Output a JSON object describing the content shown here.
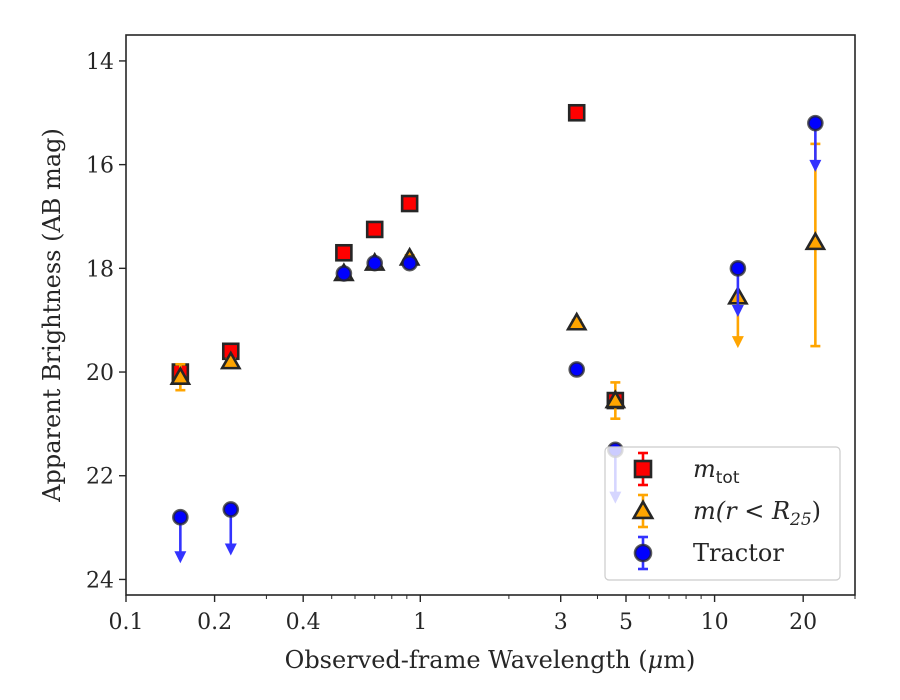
{
  "chart_data": {
    "type": "scatter",
    "xlabel": "Observed-frame Wavelength (μm)",
    "xlabel_parts": {
      "pre": "Observed-frame Wavelength (",
      "sym": "μ",
      "post": "m)"
    },
    "ylabel": "Apparent Brightness (AB mag)",
    "x_scale": "log",
    "xlim": [
      0.1,
      30
    ],
    "ylim": [
      24.3,
      13.5
    ],
    "y_inverted": true,
    "x_ticks": [
      {
        "value": 0.1,
        "label": "0.1"
      },
      {
        "value": 0.2,
        "label": "0.2"
      },
      {
        "value": 0.4,
        "label": "0.4"
      },
      {
        "value": 1,
        "label": "1"
      },
      {
        "value": 3,
        "label": "3"
      },
      {
        "value": 5,
        "label": "5"
      },
      {
        "value": 10,
        "label": "10"
      },
      {
        "value": 20,
        "label": "20"
      }
    ],
    "x_minor_ticks": [
      0.3,
      0.5,
      0.6,
      0.7,
      0.8,
      0.9,
      2,
      4,
      6,
      7,
      8,
      9,
      30
    ],
    "y_ticks": [
      {
        "value": 14,
        "label": "14"
      },
      {
        "value": 16,
        "label": "16"
      },
      {
        "value": 18,
        "label": "18"
      },
      {
        "value": 20,
        "label": "20"
      },
      {
        "value": 22,
        "label": "22"
      },
      {
        "value": 24,
        "label": "24"
      }
    ],
    "grid": false,
    "legend_position": "lower-right",
    "series": [
      {
        "key": "mtot",
        "name": "m_tot",
        "legend_label": {
          "base": "m",
          "sub": "tot"
        },
        "marker": "square",
        "color": "#ff0000",
        "edge_color": "#262626",
        "errbar_color": "#ff0000",
        "points": [
          {
            "x": 0.153,
            "y": 20.0,
            "err": 0.05
          },
          {
            "x": 0.227,
            "y": 19.6,
            "err": 0.05
          },
          {
            "x": 0.55,
            "y": 17.7,
            "err": 0.05
          },
          {
            "x": 0.7,
            "y": 17.25,
            "err": 0.05
          },
          {
            "x": 0.92,
            "y": 16.75,
            "err": 0.05
          },
          {
            "x": 3.4,
            "y": 15.0,
            "err": 0.05
          },
          {
            "x": 4.6,
            "y": 20.55,
            "err": 0.05
          }
        ]
      },
      {
        "key": "mr25",
        "name": "m(r < R_25)",
        "legend_label": {
          "pre": "m(r < R",
          "sub": "25",
          "post": ")"
        },
        "marker": "triangle",
        "color": "#ffa500",
        "edge_color": "#262626",
        "errbar_color": "#ffa500",
        "points": [
          {
            "x": 0.153,
            "y": 20.1,
            "err": 0.25
          },
          {
            "x": 0.227,
            "y": 19.8,
            "err": 0.05
          },
          {
            "x": 0.55,
            "y": 18.1,
            "err": 0.05
          },
          {
            "x": 0.7,
            "y": 17.9,
            "err": 0.05
          },
          {
            "x": 0.92,
            "y": 17.8,
            "err": 0.05
          },
          {
            "x": 3.4,
            "y": 19.05,
            "err": 0.05
          },
          {
            "x": 4.6,
            "y": 20.55,
            "err": 0.35
          },
          {
            "x": 12.0,
            "y": 18.55,
            "upper_limit": true,
            "limit_to": 19.5
          },
          {
            "x": 22.0,
            "y": 17.5,
            "err_low": 1.9,
            "err_high": 2.0
          }
        ]
      },
      {
        "key": "tractor",
        "name": "Tractor",
        "legend_label": {
          "text": "Tractor"
        },
        "marker": "circle",
        "color": "#0000ff",
        "edge_color": "#262626",
        "errbar_color": "#3333ff",
        "points": [
          {
            "x": 0.153,
            "y": 22.8,
            "upper_limit": true,
            "limit_to": 23.65
          },
          {
            "x": 0.227,
            "y": 22.65,
            "upper_limit": true,
            "limit_to": 23.5
          },
          {
            "x": 0.55,
            "y": 18.1,
            "err": 0.05
          },
          {
            "x": 0.7,
            "y": 17.9,
            "err": 0.05
          },
          {
            "x": 0.92,
            "y": 17.9,
            "err": 0.05
          },
          {
            "x": 3.4,
            "y": 19.95,
            "err": 0.05
          },
          {
            "x": 4.6,
            "y": 21.5,
            "upper_limit": true,
            "limit_to": 22.5
          },
          {
            "x": 12.0,
            "y": 18.0,
            "upper_limit": true,
            "limit_to": 18.9
          },
          {
            "x": 22.0,
            "y": 15.2,
            "upper_limit": true,
            "limit_to": 16.1
          }
        ]
      }
    ]
  }
}
